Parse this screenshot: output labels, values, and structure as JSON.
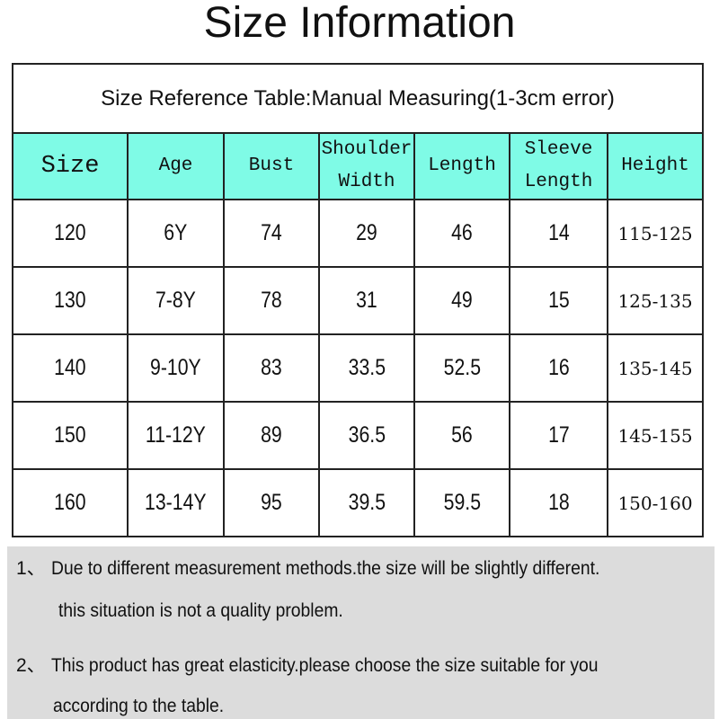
{
  "title": "Size Information",
  "table": {
    "caption": "Size Reference Table:Manual Measuring(1-3cm error)",
    "header_color": "#7ffbe6",
    "headers": [
      [
        "Size"
      ],
      [
        "Age"
      ],
      [
        "Bust"
      ],
      [
        "Shoulder",
        "Width"
      ],
      [
        "Length"
      ],
      [
        "Sleeve",
        "Length"
      ],
      [
        "Height"
      ]
    ],
    "rows": [
      [
        "120",
        "6Y",
        "74",
        "29",
        "46",
        "14",
        "115-125"
      ],
      [
        "130",
        "7-8Y",
        "78",
        "31",
        "49",
        "15",
        "125-135"
      ],
      [
        "140",
        "9-10Y",
        "83",
        "33.5",
        "52.5",
        "16",
        "135-145"
      ],
      [
        "150",
        "11-12Y",
        "89",
        "36.5",
        "56",
        "17",
        "145-155"
      ],
      [
        "160",
        "13-14Y",
        "95",
        "39.5",
        "59.5",
        "18",
        "150-160"
      ]
    ]
  },
  "notes": [
    {
      "num": "1、",
      "line1": "Due to different measurement methods.the size will be slightly different.",
      "line2": "this situation is not a quality problem."
    },
    {
      "num": "2、",
      "line1": "This product has great elasticity.please choose the size suitable for you",
      "line2": "according to the table."
    }
  ]
}
